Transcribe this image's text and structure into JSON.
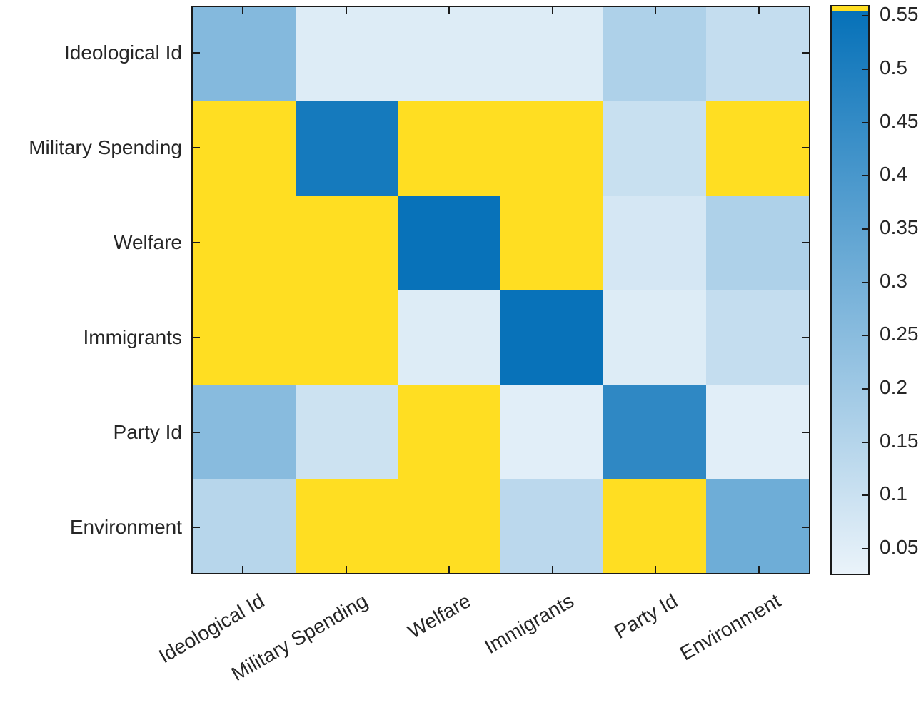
{
  "chart_data": {
    "type": "heatmap",
    "title": "",
    "row_labels": [
      "Ideological Id",
      "Military Spending",
      "Welfare",
      "Immigrants",
      "Party Id",
      "Environment"
    ],
    "col_labels": [
      "Ideological Id",
      "Military Spending",
      "Welfare",
      "Immigrants",
      "Party Id",
      "Environment"
    ],
    "matrix": [
      [
        0.26,
        0.05,
        0.05,
        0.05,
        0.16,
        0.11
      ],
      [
        null,
        0.52,
        null,
        null,
        0.1,
        null
      ],
      [
        null,
        null,
        0.55,
        null,
        0.07,
        0.16
      ],
      [
        null,
        null,
        0.05,
        0.55,
        0.05,
        0.11
      ],
      [
        0.25,
        0.09,
        null,
        0.04,
        0.46,
        0.04
      ],
      [
        0.14,
        null,
        null,
        0.13,
        null,
        0.31
      ]
    ],
    "value_note": "null cells render as clip-yellow (value above colorbar maximum)",
    "colorbar": {
      "ticks": [
        0.55,
        0.5,
        0.45,
        0.4,
        0.35,
        0.3,
        0.25,
        0.2,
        0.15,
        0.1,
        0.05
      ],
      "tick_labels": [
        "0.55",
        "0.5",
        "0.45",
        "0.4",
        "0.35",
        "0.3",
        "0.25",
        "0.2",
        "0.15",
        "0.1",
        "0.05"
      ],
      "scale_min": 0.024,
      "scale_max": 0.559,
      "legend_position": "right"
    },
    "colors": {
      "low": "#eaf3fa",
      "high": "#0470b8",
      "clip": "#ffde22",
      "axis": "#1a1a1a",
      "text": "#262626",
      "background": "#ffffff"
    },
    "layout": {
      "grid": "off",
      "ticks": "inward all four sides",
      "x_label_rotation_deg": -30
    }
  }
}
